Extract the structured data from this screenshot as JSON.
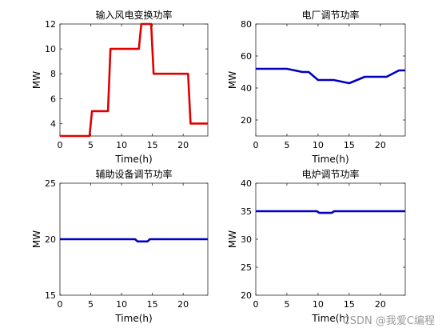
{
  "watermark": "CSDN @我爱C编程",
  "chart_data": [
    {
      "type": "line",
      "title": "输入风电变换功率",
      "xlabel": "Time(h)",
      "ylabel": "MW",
      "xlim": [
        0,
        24
      ],
      "ylim": [
        3,
        12
      ],
      "xticks": [
        0,
        5,
        10,
        15,
        20
      ],
      "yticks": [
        4,
        6,
        8,
        10,
        12
      ],
      "grid": false,
      "series": [
        {
          "color": "#e00000",
          "x": [
            0,
            4.8,
            5.2,
            7.8,
            8.2,
            12.8,
            13.2,
            14.8,
            15.2,
            20.8,
            21.2,
            24
          ],
          "y": [
            3,
            3,
            5,
            5,
            10,
            10,
            12,
            12,
            8,
            8,
            4,
            4
          ]
        }
      ]
    },
    {
      "type": "line",
      "title": "电厂调节功率",
      "xlabel": "Time(h)",
      "ylabel": "MW",
      "xlim": [
        0,
        24
      ],
      "ylim": [
        10,
        80
      ],
      "xticks": [
        0,
        5,
        10,
        15,
        20
      ],
      "yticks": [
        20,
        40,
        60,
        80
      ],
      "grid": false,
      "series": [
        {
          "color": "#0000c0",
          "x": [
            0,
            5,
            7.5,
            8.5,
            10,
            12.5,
            15,
            17.5,
            21,
            23,
            24
          ],
          "y": [
            52,
            52,
            50,
            50,
            45,
            45,
            43,
            47,
            47,
            51,
            51
          ]
        }
      ]
    },
    {
      "type": "line",
      "title": "辅助设备调节功率",
      "xlabel": "Time(h)",
      "ylabel": "MW",
      "xlim": [
        0,
        24
      ],
      "ylim": [
        15,
        25
      ],
      "xticks": [
        0,
        5,
        10,
        15,
        20
      ],
      "yticks": [
        15,
        20,
        25
      ],
      "grid": false,
      "series": [
        {
          "color": "#0000c0",
          "x": [
            0,
            12.2,
            12.6,
            14.2,
            14.6,
            24
          ],
          "y": [
            20,
            20,
            19.8,
            19.8,
            20,
            20
          ]
        }
      ]
    },
    {
      "type": "line",
      "title": "电炉调节功率",
      "xlabel": "Time(h)",
      "ylabel": "MW",
      "xlim": [
        0,
        24
      ],
      "ylim": [
        20,
        40
      ],
      "xticks": [
        0,
        5,
        10,
        15,
        20
      ],
      "yticks": [
        20,
        25,
        30,
        35,
        40
      ],
      "grid": false,
      "series": [
        {
          "color": "#0000c0",
          "x": [
            0,
            9.8,
            10.2,
            12.2,
            12.6,
            24
          ],
          "y": [
            35,
            35,
            34.7,
            34.7,
            35,
            35
          ]
        }
      ]
    }
  ]
}
